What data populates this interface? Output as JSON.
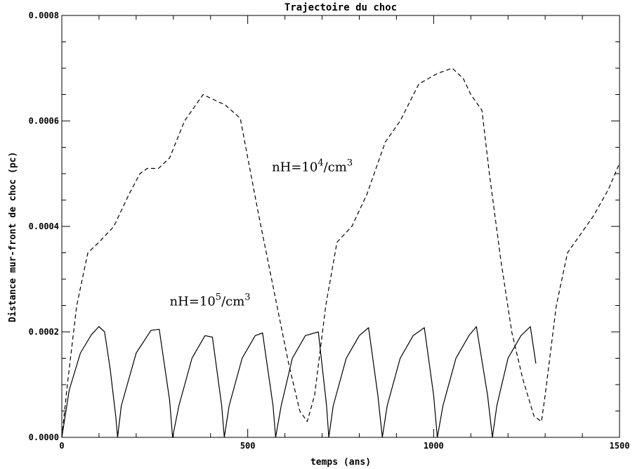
{
  "chart_data": {
    "type": "line",
    "title": "Trajectoire du choc",
    "xlabel": "temps (ans)",
    "ylabel": "Distance mur-front de choc (pc)",
    "xlim": [
      0,
      1500
    ],
    "ylim": [
      0,
      0.0008
    ],
    "x_ticks": [
      {
        "value": 0,
        "label": "0"
      },
      {
        "value": 500,
        "label": "500"
      },
      {
        "value": 1000,
        "label": "1000"
      },
      {
        "value": 1500,
        "label": "1500"
      }
    ],
    "x_minor_step": 100,
    "y_ticks": [
      {
        "value": 0,
        "label": "0.0000"
      },
      {
        "value": 0.0002,
        "label": "0.0002"
      },
      {
        "value": 0.0004,
        "label": "0.0004"
      },
      {
        "value": 0.0006,
        "label": "0.0006"
      },
      {
        "value": 0.0008,
        "label": "0.0008"
      }
    ],
    "y_minor_step": 5e-05,
    "grid": false,
    "series": [
      {
        "name": "nH=10^4/cm^3",
        "style": "dashed",
        "color": "#000000",
        "x": [
          0,
          15,
          40,
          70,
          100,
          140,
          180,
          210,
          230,
          260,
          290,
          330,
          380,
          410,
          440,
          480,
          500,
          530,
          570,
          610,
          640,
          660,
          680,
          710,
          740,
          780,
          820,
          870,
          910,
          960,
          1010,
          1050,
          1080,
          1100,
          1130,
          1150,
          1180,
          1210,
          1240,
          1270,
          1290,
          1300,
          1330,
          1360,
          1390,
          1430,
          1470,
          1500
        ],
        "y": [
          0.0,
          0.0001,
          0.00025,
          0.00035,
          0.00037,
          0.0004,
          0.00046,
          0.0005,
          0.00051,
          0.00051,
          0.00053,
          0.0006,
          0.00065,
          0.00064,
          0.00063,
          0.000605,
          0.00053,
          0.00042,
          0.00028,
          0.00014,
          5e-05,
          3e-05,
          8e-05,
          0.00025,
          0.00037,
          0.0004,
          0.00046,
          0.00056,
          0.0006,
          0.00067,
          0.00069,
          0.0007,
          0.00068,
          0.00065,
          0.00062,
          0.0005,
          0.00034,
          0.0002,
          0.00011,
          4e-05,
          3e-05,
          8e-05,
          0.00025,
          0.00035,
          0.00038,
          0.00042,
          0.00047,
          0.00052
        ]
      },
      {
        "name": "nH=10^5/cm^3",
        "style": "solid",
        "color": "#000000",
        "x": [
          0,
          20,
          50,
          80,
          100,
          115,
          130,
          145,
          150,
          160,
          200,
          240,
          262,
          290,
          298,
          315,
          350,
          385,
          405,
          430,
          437,
          450,
          485,
          520,
          540,
          568,
          575,
          590,
          620,
          655,
          690,
          712,
          718,
          730,
          765,
          800,
          825,
          850,
          862,
          875,
          910,
          945,
          975,
          1000,
          1010,
          1025,
          1060,
          1095,
          1115,
          1145,
          1158,
          1170,
          1200,
          1235,
          1260,
          1275
        ],
        "y": [
          0.0,
          9e-05,
          0.00016,
          0.000195,
          0.00021,
          0.0002,
          0.00013,
          4e-05,
          0.0,
          6e-05,
          0.00016,
          0.000203,
          0.000205,
          7e-05,
          0.0,
          6e-05,
          0.00015,
          0.000193,
          0.00019,
          6e-05,
          0.0,
          6e-05,
          0.00015,
          0.000193,
          0.000198,
          6e-05,
          0.0,
          6e-05,
          0.00015,
          0.000193,
          0.0002,
          6e-05,
          0.0,
          6e-05,
          0.00015,
          0.000193,
          0.000208,
          8e-05,
          0.0,
          6e-05,
          0.00015,
          0.000193,
          0.000208,
          8e-05,
          0.0,
          6e-05,
          0.00015,
          0.000193,
          0.00021,
          8e-05,
          0.0,
          6e-05,
          0.00015,
          0.000193,
          0.00021,
          0.00014
        ]
      }
    ],
    "annotations": [
      {
        "base": "nH=10",
        "sup1": "4",
        "mid": "/cm",
        "sup2": "3",
        "x": 565,
        "y": 0.000505
      },
      {
        "base": "nH=10",
        "sup1": "5",
        "mid": "/cm",
        "sup2": "3",
        "x": 290,
        "y": 0.00025
      }
    ]
  }
}
